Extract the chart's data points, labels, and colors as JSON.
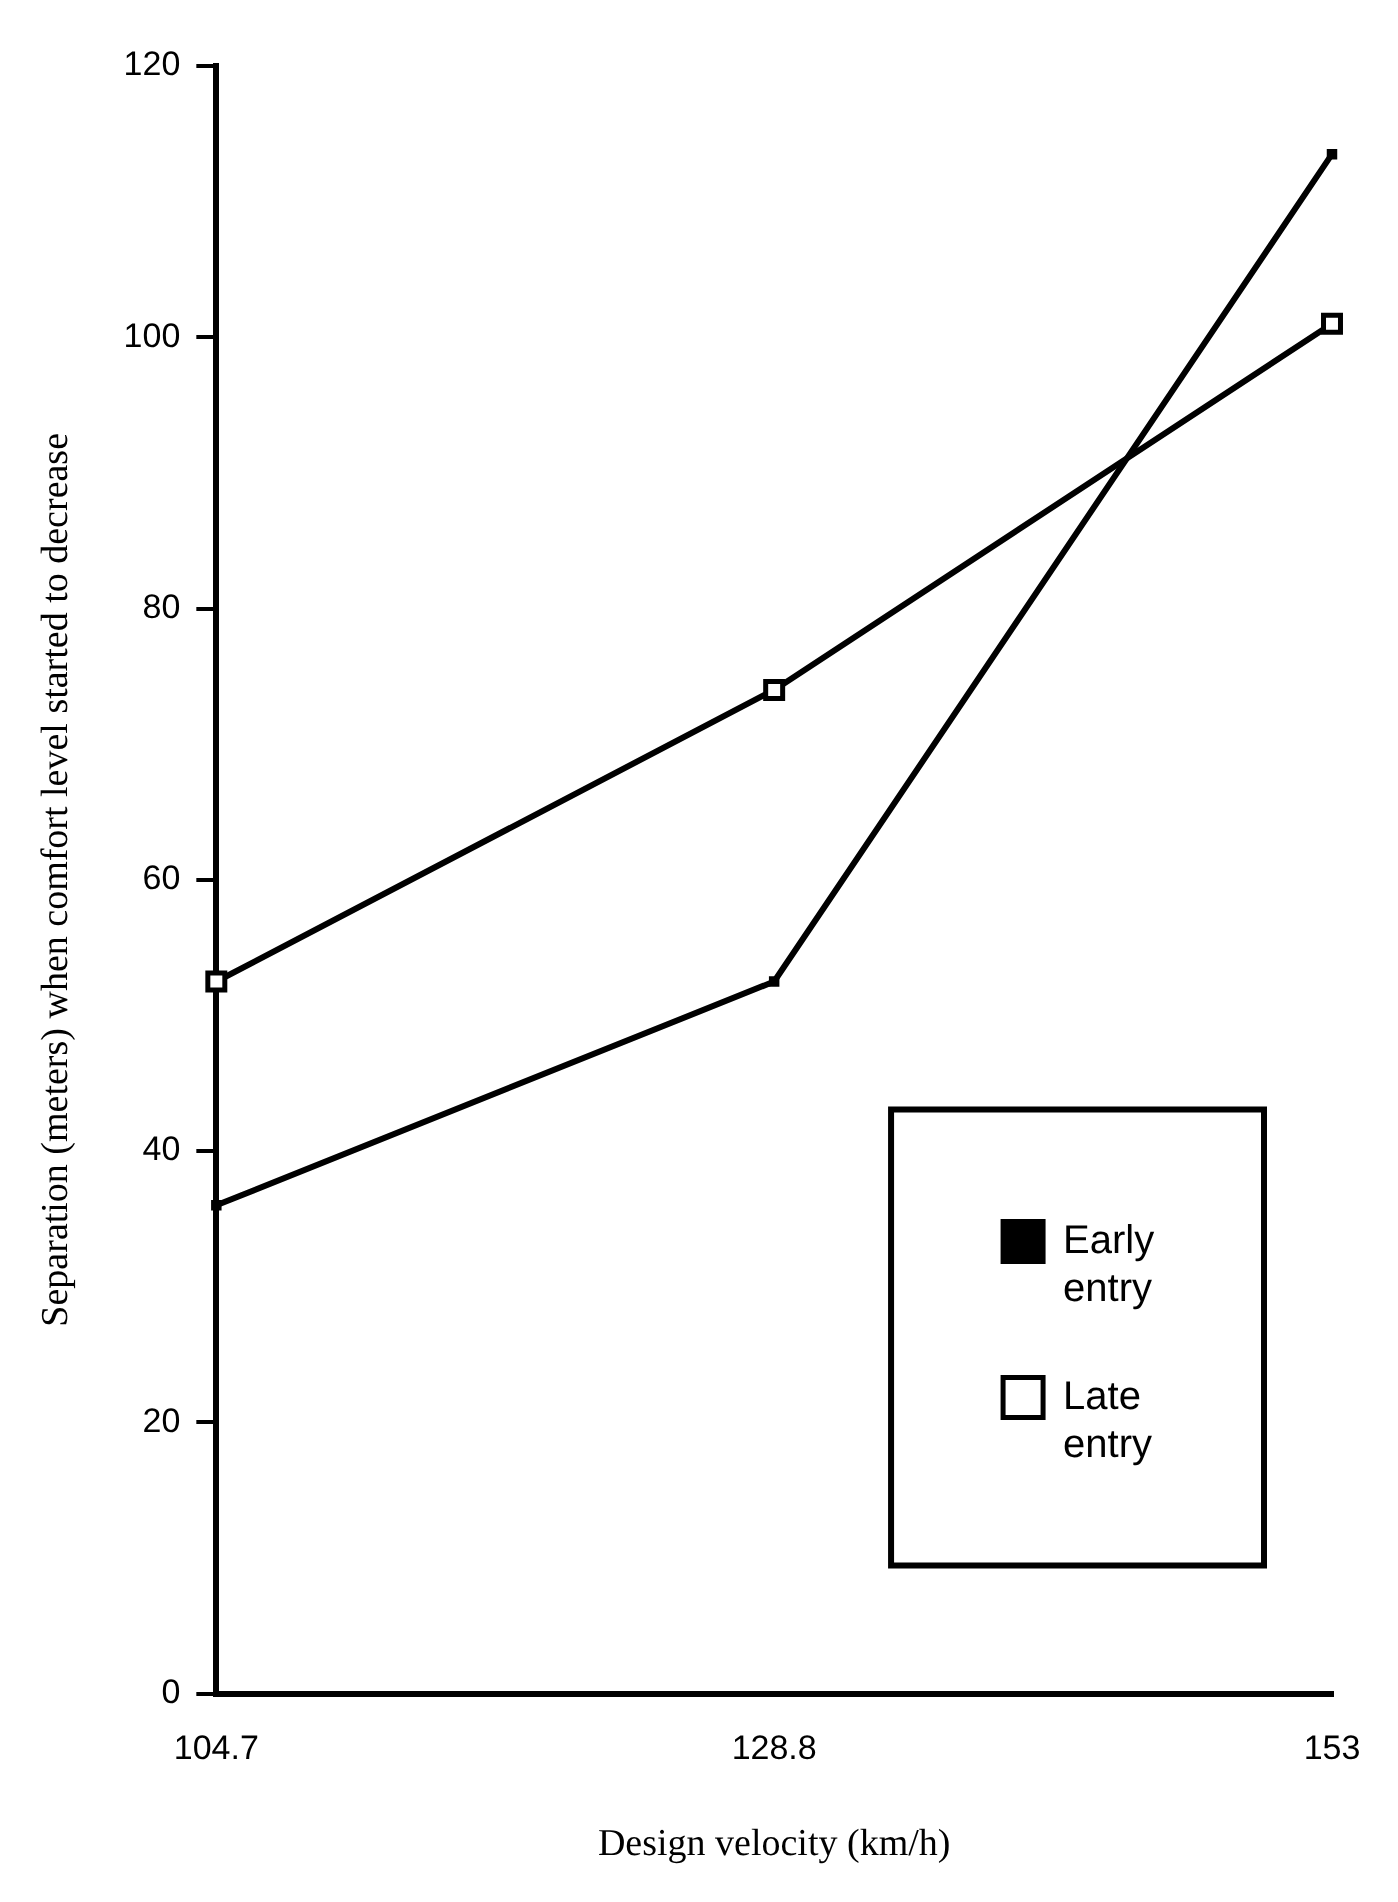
{
  "chart_data": {
    "type": "line",
    "xlabel": "Design velocity (km/h)",
    "ylabel": "Separation (meters) when comfort level started to decrease",
    "categories": [
      "104.7",
      "128.8",
      "153"
    ],
    "series": [
      {
        "name": "Early entry",
        "color": "#000000",
        "marker": "square",
        "values": [
          36,
          52.5,
          113.5
        ]
      },
      {
        "name": "Late entry",
        "color": "#000000",
        "marker": "square",
        "values": [
          52.5,
          74,
          101
        ]
      }
    ],
    "ylim": [
      0,
      120
    ],
    "yticks": [
      0,
      20,
      40,
      60,
      80,
      100,
      120
    ],
    "grid": false,
    "legend": "bottom right",
    "line_style": "solid"
  }
}
